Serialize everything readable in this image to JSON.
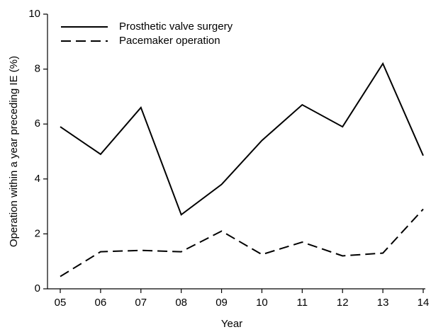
{
  "chart_data": {
    "type": "line",
    "x_label": "Year",
    "y_label": "Operation within a year preceding IE (%)",
    "categories": [
      "05",
      "06",
      "07",
      "08",
      "09",
      "10",
      "11",
      "12",
      "13",
      "14"
    ],
    "series": [
      {
        "name": "Prosthetic valve surgery",
        "color": "#000000",
        "dash": "solid",
        "values": [
          5.9,
          4.9,
          6.6,
          2.7,
          3.8,
          5.4,
          6.7,
          5.9,
          8.2,
          4.85
        ]
      },
      {
        "name": "Pacemaker operation",
        "color": "#000000",
        "dash": "dashed",
        "values": [
          0.45,
          1.35,
          1.4,
          1.35,
          2.1,
          1.25,
          1.7,
          1.2,
          1.3,
          2.9
        ]
      }
    ],
    "ylim": [
      0,
      10
    ],
    "yticks": [
      0,
      2,
      4,
      6,
      8,
      10
    ],
    "grid": false,
    "legend": "upper left"
  }
}
